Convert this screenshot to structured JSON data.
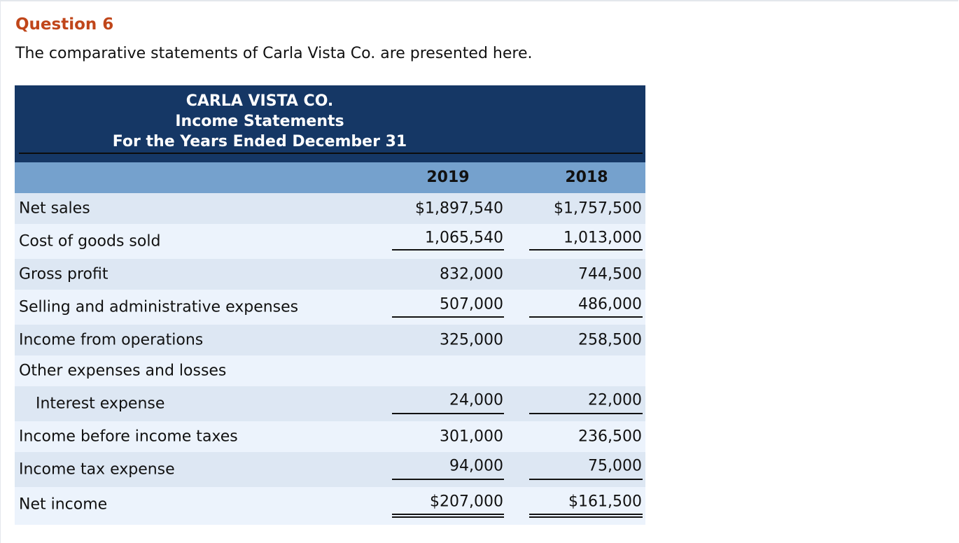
{
  "question": {
    "title": "Question 6",
    "text": "The comparative statements of Carla Vista Co. are presented here."
  },
  "statement": {
    "company": "CARLA VISTA CO.",
    "name": "Income Statements",
    "period": "For the Years Ended December 31",
    "years": [
      "2019",
      "2018"
    ],
    "rows": [
      {
        "label": "Net sales",
        "y2019": "$1,897,540",
        "y2018": "$1,757,500"
      },
      {
        "label": "Cost of goods sold",
        "y2019": "1,065,540",
        "y2018": "1,013,000"
      },
      {
        "label": "Gross profit",
        "y2019": "832,000",
        "y2018": "744,500"
      },
      {
        "label": "Selling and administrative expenses",
        "y2019": "507,000",
        "y2018": "486,000"
      },
      {
        "label": "Income from operations",
        "y2019": "325,000",
        "y2018": "258,500"
      },
      {
        "label": "Other expenses and losses",
        "y2019": "",
        "y2018": ""
      },
      {
        "label": "Interest expense",
        "y2019": "24,000",
        "y2018": "22,000"
      },
      {
        "label": "Income before income taxes",
        "y2019": "301,000",
        "y2018": "236,500"
      },
      {
        "label": "Income tax expense",
        "y2019": "94,000",
        "y2018": "75,000"
      },
      {
        "label": "Net income",
        "y2019": "$207,000",
        "y2018": "$161,500"
      }
    ]
  },
  "colors": {
    "title_accent": "#c0461a",
    "header_dark": "#153765",
    "header_light": "#75a1cd",
    "row_a": "#dde7f3",
    "row_b": "#ecf3fc"
  }
}
